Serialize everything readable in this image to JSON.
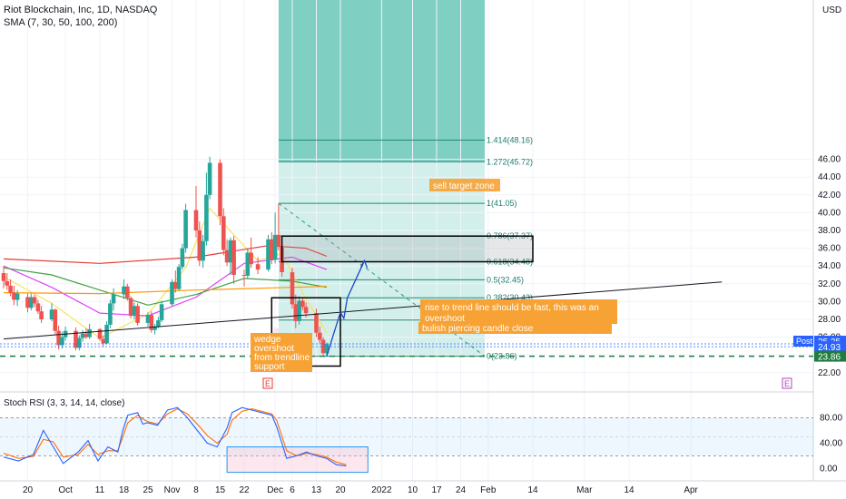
{
  "header": {
    "symbol": "Riot Blockchain, Inc, 1D, NASDAQ",
    "indicator": "SMA (7, 30, 50, 100, 200)",
    "currency": "USD"
  },
  "price_axis": {
    "labels": [
      "46.00",
      "44.00",
      "42.00",
      "40.00",
      "38.00",
      "36.00",
      "34.00",
      "32.00",
      "30.00",
      "28.00",
      "26.00",
      "24.00",
      "22.00"
    ],
    "badges": [
      {
        "label": "Post",
        "value": "25.25",
        "color": "#2962ff"
      },
      {
        "value": "24.93",
        "color": "#2962ff"
      },
      {
        "value": "23.86",
        "color": "#1e7d3f"
      }
    ]
  },
  "time_axis": {
    "labels": [
      "20",
      "Oct",
      "11",
      "18",
      "25",
      "Nov",
      "8",
      "15",
      "22",
      "Dec",
      "6",
      "13",
      "20",
      "2022",
      "10",
      "17",
      "24",
      "Feb",
      "14",
      "Mar",
      "14",
      "Apr"
    ]
  },
  "fib_levels": [
    {
      "label": "1.414(48.16)",
      "price": 48.16
    },
    {
      "label": "1.272(45.72)",
      "price": 45.72
    },
    {
      "label": "1(41.05)",
      "price": 41.05
    },
    {
      "label": "0.786(37.37)",
      "price": 37.37
    },
    {
      "label": "0.618(34.48)",
      "price": 34.48
    },
    {
      "label": "0.5(32.45)",
      "price": 32.45
    },
    {
      "label": "0.382(30.43)",
      "price": 30.43
    },
    {
      "label": "0.236(27.92)",
      "price": 27.92
    },
    {
      "label": "0(23.86)",
      "price": 23.86
    }
  ],
  "annotations": {
    "sell_zone": "sell target zone",
    "trend_note": "rise to trend line should be fast, this was an overshoot",
    "piercing": "bulish piercing candle close",
    "wedge": [
      "wedge",
      "overshoot",
      "from trendline",
      "support"
    ],
    "earnings_marker": "E"
  },
  "stoch": {
    "title": "Stoch RSI (3, 3, 14, 14, close)",
    "labels": [
      "80.00",
      "40.00",
      "0.00"
    ]
  },
  "colors": {
    "up": "#26a69a",
    "down": "#ef5350",
    "stoch_k": "#2962ff",
    "stoch_d": "#ff6d00",
    "note": "#f7a234"
  },
  "chart_data": {
    "type": "candlestick",
    "x_start": "2021-09-13",
    "candles": [
      {
        "d": "2021-09-13",
        "o": 33.2,
        "h": 34.0,
        "l": 31.5,
        "c": 32.3
      },
      {
        "d": "2021-09-14",
        "o": 32.3,
        "h": 33.2,
        "l": 31.3,
        "c": 31.8
      },
      {
        "d": "2021-09-15",
        "o": 31.8,
        "h": 32.5,
        "l": 30.6,
        "c": 31.0
      },
      {
        "d": "2021-09-16",
        "o": 31.0,
        "h": 31.8,
        "l": 29.6,
        "c": 30.2
      },
      {
        "d": "2021-09-17",
        "o": 30.2,
        "h": 31.3,
        "l": 29.5,
        "c": 30.9
      },
      {
        "d": "2021-09-20",
        "o": 30.5,
        "h": 30.9,
        "l": 28.8,
        "c": 29.3
      },
      {
        "d": "2021-09-21",
        "o": 29.3,
        "h": 30.9,
        "l": 29.0,
        "c": 30.5
      },
      {
        "d": "2021-09-22",
        "o": 30.5,
        "h": 30.8,
        "l": 29.4,
        "c": 29.8
      },
      {
        "d": "2021-09-23",
        "o": 29.8,
        "h": 30.2,
        "l": 28.6,
        "c": 28.9
      },
      {
        "d": "2021-09-24",
        "o": 28.9,
        "h": 29.5,
        "l": 27.6,
        "c": 28.0
      },
      {
        "d": "2021-09-27",
        "o": 28.0,
        "h": 29.8,
        "l": 27.8,
        "c": 29.1
      },
      {
        "d": "2021-09-28",
        "o": 29.1,
        "h": 29.2,
        "l": 26.2,
        "c": 26.7
      },
      {
        "d": "2021-09-29",
        "o": 26.7,
        "h": 27.3,
        "l": 24.6,
        "c": 25.1
      },
      {
        "d": "2021-09-30",
        "o": 25.1,
        "h": 26.6,
        "l": 24.7,
        "c": 26.0
      },
      {
        "d": "2021-10-01",
        "o": 26.0,
        "h": 27.2,
        "l": 25.6,
        "c": 26.7
      },
      {
        "d": "2021-10-04",
        "o": 26.7,
        "h": 27.1,
        "l": 24.5,
        "c": 24.8
      },
      {
        "d": "2021-10-05",
        "o": 24.8,
        "h": 26.2,
        "l": 24.5,
        "c": 25.9
      },
      {
        "d": "2021-10-06",
        "o": 25.9,
        "h": 26.8,
        "l": 25.5,
        "c": 26.4
      },
      {
        "d": "2021-10-07",
        "o": 26.4,
        "h": 27.0,
        "l": 25.8,
        "c": 26.0
      },
      {
        "d": "2021-10-08",
        "o": 26.0,
        "h": 27.5,
        "l": 25.8,
        "c": 26.9
      },
      {
        "d": "2021-10-11",
        "o": 26.9,
        "h": 27.0,
        "l": 25.6,
        "c": 25.8
      },
      {
        "d": "2021-10-12",
        "o": 25.8,
        "h": 26.2,
        "l": 24.9,
        "c": 25.3
      },
      {
        "d": "2021-10-13",
        "o": 25.3,
        "h": 27.8,
        "l": 25.2,
        "c": 27.4
      },
      {
        "d": "2021-10-14",
        "o": 27.4,
        "h": 30.2,
        "l": 27.0,
        "c": 29.8
      },
      {
        "d": "2021-10-15",
        "o": 29.8,
        "h": 31.5,
        "l": 29.0,
        "c": 30.8
      },
      {
        "d": "2021-10-18",
        "o": 30.8,
        "h": 32.5,
        "l": 30.3,
        "c": 31.7
      },
      {
        "d": "2021-10-19",
        "o": 31.7,
        "h": 32.0,
        "l": 30.1,
        "c": 30.4
      },
      {
        "d": "2021-10-20",
        "o": 30.4,
        "h": 30.6,
        "l": 28.1,
        "c": 28.4
      },
      {
        "d": "2021-10-21",
        "o": 28.4,
        "h": 29.9,
        "l": 28.0,
        "c": 29.5
      },
      {
        "d": "2021-10-22",
        "o": 29.5,
        "h": 29.8,
        "l": 27.3,
        "c": 27.6
      },
      {
        "d": "2021-10-25",
        "o": 27.6,
        "h": 28.8,
        "l": 27.2,
        "c": 28.5
      },
      {
        "d": "2021-10-26",
        "o": 28.5,
        "h": 28.9,
        "l": 26.5,
        "c": 26.8
      },
      {
        "d": "2021-10-27",
        "o": 26.8,
        "h": 27.5,
        "l": 26.3,
        "c": 27.2
      },
      {
        "d": "2021-10-28",
        "o": 27.2,
        "h": 28.3,
        "l": 27.0,
        "c": 27.9
      },
      {
        "d": "2021-10-29",
        "o": 27.9,
        "h": 30.1,
        "l": 27.7,
        "c": 29.7
      },
      {
        "d": "2021-11-01",
        "o": 29.7,
        "h": 32.5,
        "l": 29.5,
        "c": 32.2
      },
      {
        "d": "2021-11-02",
        "o": 32.2,
        "h": 33.5,
        "l": 31.0,
        "c": 31.4
      },
      {
        "d": "2021-11-03",
        "o": 31.4,
        "h": 34.2,
        "l": 31.2,
        "c": 33.9
      },
      {
        "d": "2021-11-04",
        "o": 33.9,
        "h": 36.5,
        "l": 33.6,
        "c": 36.0
      },
      {
        "d": "2021-11-05",
        "o": 36.0,
        "h": 41.0,
        "l": 35.5,
        "c": 40.3
      },
      {
        "d": "2021-11-08",
        "o": 40.3,
        "h": 43.0,
        "l": 37.2,
        "c": 38.0
      },
      {
        "d": "2021-11-09",
        "o": 38.0,
        "h": 39.0,
        "l": 34.0,
        "c": 34.6
      },
      {
        "d": "2021-11-10",
        "o": 34.6,
        "h": 37.5,
        "l": 33.8,
        "c": 36.8
      },
      {
        "d": "2021-11-11",
        "o": 36.8,
        "h": 44.5,
        "l": 36.3,
        "c": 42.0
      },
      {
        "d": "2021-11-12",
        "o": 42.0,
        "h": 46.3,
        "l": 41.5,
        "c": 45.6
      },
      {
        "d": "2021-11-15",
        "o": 45.6,
        "h": 46.0,
        "l": 38.6,
        "c": 39.6
      },
      {
        "d": "2021-11-16",
        "o": 39.6,
        "h": 40.5,
        "l": 35.2,
        "c": 35.8
      },
      {
        "d": "2021-11-17",
        "o": 35.8,
        "h": 37.0,
        "l": 34.0,
        "c": 34.4
      },
      {
        "d": "2021-11-18",
        "o": 34.4,
        "h": 37.2,
        "l": 33.0,
        "c": 36.9
      },
      {
        "d": "2021-11-19",
        "o": 36.9,
        "h": 37.4,
        "l": 32.0,
        "c": 33.0
      },
      {
        "d": "2021-11-22",
        "o": 33.0,
        "h": 33.6,
        "l": 31.7,
        "c": 32.9
      },
      {
        "d": "2021-11-23",
        "o": 32.9,
        "h": 36.0,
        "l": 32.6,
        "c": 35.5
      },
      {
        "d": "2021-11-24",
        "o": 35.5,
        "h": 37.2,
        "l": 33.8,
        "c": 34.2
      },
      {
        "d": "2021-11-26",
        "o": 34.2,
        "h": 35.0,
        "l": 33.1,
        "c": 33.6
      },
      {
        "d": "2021-11-29",
        "o": 33.6,
        "h": 37.5,
        "l": 33.4,
        "c": 37.0
      },
      {
        "d": "2021-11-30",
        "o": 37.0,
        "h": 37.8,
        "l": 34.2,
        "c": 34.7
      },
      {
        "d": "2021-12-01",
        "o": 34.7,
        "h": 40.0,
        "l": 34.3,
        "c": 37.5
      },
      {
        "d": "2021-12-02",
        "o": 37.5,
        "h": 41.0,
        "l": 35.8,
        "c": 36.2
      },
      {
        "d": "2021-12-03",
        "o": 36.2,
        "h": 36.6,
        "l": 32.8,
        "c": 33.3
      },
      {
        "d": "2021-12-06",
        "o": 33.3,
        "h": 33.8,
        "l": 29.2,
        "c": 29.7
      },
      {
        "d": "2021-12-07",
        "o": 29.7,
        "h": 30.8,
        "l": 27.0,
        "c": 27.8
      },
      {
        "d": "2021-12-08",
        "o": 27.8,
        "h": 30.6,
        "l": 27.4,
        "c": 30.1
      },
      {
        "d": "2021-12-09",
        "o": 30.1,
        "h": 30.5,
        "l": 29.0,
        "c": 29.4
      },
      {
        "d": "2021-12-10",
        "o": 29.4,
        "h": 29.9,
        "l": 28.2,
        "c": 28.7
      },
      {
        "d": "2021-12-13",
        "o": 28.7,
        "h": 29.2,
        "l": 26.0,
        "c": 26.5
      },
      {
        "d": "2021-12-14",
        "o": 26.5,
        "h": 27.2,
        "l": 25.3,
        "c": 25.7
      },
      {
        "d": "2021-12-15",
        "o": 25.7,
        "h": 26.0,
        "l": 23.9,
        "c": 24.2
      },
      {
        "d": "2021-12-16",
        "o": 24.2,
        "h": 25.4,
        "l": 23.86,
        "c": 25.25
      }
    ],
    "moving_averages": [
      {
        "period": 7,
        "color": "#f5e35e",
        "points": [
          [
            "2021-09-13",
            32.8
          ],
          [
            "2021-09-27",
            29.8
          ],
          [
            "2021-10-11",
            25.9
          ],
          [
            "2021-10-25",
            28.6
          ],
          [
            "2021-11-05",
            33.8
          ],
          [
            "2021-11-12",
            40.5
          ],
          [
            "2021-11-19",
            37.5
          ],
          [
            "2021-11-26",
            34.6
          ],
          [
            "2021-12-03",
            35.4
          ],
          [
            "2021-12-10",
            30.3
          ],
          [
            "2021-12-16",
            26.5
          ]
        ]
      },
      {
        "period": 30,
        "color": "#e040fb",
        "points": [
          [
            "2021-09-13",
            34.0
          ],
          [
            "2021-09-27",
            31.6
          ],
          [
            "2021-10-11",
            28.7
          ],
          [
            "2021-10-25",
            28.4
          ],
          [
            "2021-11-08",
            30.5
          ],
          [
            "2021-11-22",
            34.3
          ],
          [
            "2021-12-06",
            35.0
          ],
          [
            "2021-12-16",
            33.6
          ]
        ]
      },
      {
        "period": 50,
        "color": "#43a047",
        "points": [
          [
            "2021-09-13",
            33.8
          ],
          [
            "2021-09-27",
            33.0
          ],
          [
            "2021-10-11",
            31.3
          ],
          [
            "2021-10-25",
            29.6
          ],
          [
            "2021-11-08",
            30.8
          ],
          [
            "2021-11-22",
            32.6
          ],
          [
            "2021-12-06",
            32.3
          ],
          [
            "2021-12-16",
            31.6
          ]
        ]
      },
      {
        "period": 100,
        "color": "#ff9800",
        "points": [
          [
            "2021-09-13",
            31.0
          ],
          [
            "2021-10-11",
            30.9
          ],
          [
            "2021-11-08",
            31.3
          ],
          [
            "2021-12-06",
            31.6
          ],
          [
            "2021-12-16",
            31.7
          ]
        ]
      },
      {
        "period": 200,
        "color": "#e53935",
        "points": [
          [
            "2021-09-13",
            34.8
          ],
          [
            "2021-10-11",
            34.3
          ],
          [
            "2021-11-08",
            35.0
          ],
          [
            "2021-11-29",
            36.3
          ],
          [
            "2021-12-10",
            36.0
          ],
          [
            "2021-12-16",
            35.1
          ]
        ]
      }
    ],
    "trendlines": [
      {
        "color": "#131722",
        "from": [
          "2021-09-13",
          25.8
        ],
        "to": [
          "2022-04-10",
          32.2
        ]
      },
      {
        "color": "#2d9a7d",
        "dashed": true,
        "from": [
          "2021-12-02",
          41.05
        ],
        "to": [
          "2022-01-31",
          23.86
        ]
      }
    ],
    "projection": {
      "color": "#2046c6",
      "points": [
        [
          "2021-12-16",
          23.86
        ],
        [
          "2021-12-20",
          28.8
        ],
        [
          "2021-12-21",
          28.1
        ],
        [
          "2021-12-22",
          30.4
        ],
        [
          "2021-12-27",
          34.6
        ]
      ]
    },
    "fib_box": {
      "from": "2021-12-02",
      "to": "2022-01-31"
    },
    "rect_zone": {
      "from": "2021-12-03",
      "to": "2022-02-14",
      "top": 37.37,
      "bottom": 34.48
    },
    "rect_wedge": {
      "from": "2021-11-30",
      "to": "2021-12-20",
      "top": 30.43,
      "bottom": 22.75
    },
    "ylim": [
      21.0,
      49.2
    ],
    "stoch_rsi": {
      "k": [
        [
          0,
          18
        ],
        [
          3,
          12
        ],
        [
          6,
          22
        ],
        [
          8,
          60
        ],
        [
          10,
          34
        ],
        [
          12,
          8
        ],
        [
          15,
          26
        ],
        [
          17,
          44
        ],
        [
          19,
          12
        ],
        [
          21,
          34
        ],
        [
          23,
          26
        ],
        [
          24,
          60
        ],
        [
          25,
          84
        ],
        [
          27,
          88
        ],
        [
          28,
          70
        ],
        [
          29,
          72
        ],
        [
          31,
          68
        ],
        [
          33,
          92
        ],
        [
          35,
          96
        ],
        [
          37,
          80
        ],
        [
          39,
          60
        ],
        [
          41,
          40
        ],
        [
          43,
          34
        ],
        [
          45,
          64
        ],
        [
          46,
          88
        ],
        [
          48,
          96
        ],
        [
          50,
          92
        ],
        [
          52,
          88
        ],
        [
          54,
          84
        ],
        [
          55,
          66
        ],
        [
          57,
          16
        ],
        [
          59,
          20
        ],
        [
          61,
          26
        ],
        [
          63,
          20
        ],
        [
          65,
          16
        ],
        [
          67,
          6
        ],
        [
          69,
          4
        ]
      ],
      "d": [
        [
          0,
          24
        ],
        [
          3,
          16
        ],
        [
          6,
          19
        ],
        [
          8,
          46
        ],
        [
          10,
          42
        ],
        [
          12,
          18
        ],
        [
          15,
          22
        ],
        [
          17,
          38
        ],
        [
          19,
          22
        ],
        [
          21,
          28
        ],
        [
          23,
          28
        ],
        [
          24,
          50
        ],
        [
          25,
          72
        ],
        [
          27,
          84
        ],
        [
          28,
          78
        ],
        [
          29,
          74
        ],
        [
          31,
          70
        ],
        [
          33,
          86
        ],
        [
          35,
          94
        ],
        [
          37,
          86
        ],
        [
          39,
          70
        ],
        [
          41,
          52
        ],
        [
          43,
          40
        ],
        [
          45,
          54
        ],
        [
          46,
          76
        ],
        [
          48,
          90
        ],
        [
          50,
          94
        ],
        [
          52,
          90
        ],
        [
          54,
          86
        ],
        [
          55,
          76
        ],
        [
          57,
          28
        ],
        [
          59,
          20
        ],
        [
          61,
          24
        ],
        [
          63,
          22
        ],
        [
          65,
          18
        ],
        [
          67,
          10
        ],
        [
          69,
          6
        ]
      ],
      "ylim": [
        -8,
        112
      ]
    }
  }
}
